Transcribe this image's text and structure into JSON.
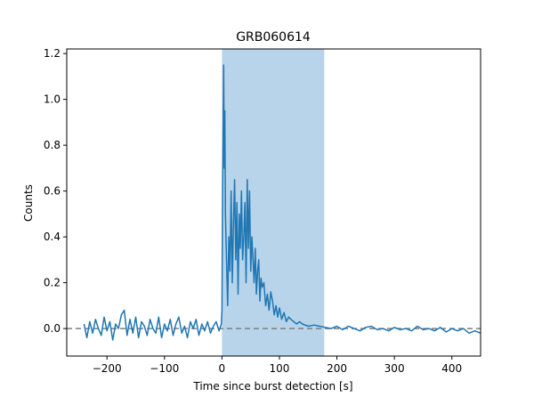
{
  "chart_data": {
    "type": "line",
    "title": "GRB060614",
    "xlabel": "Time since burst detection [s]",
    "ylabel": "Counts",
    "xlim": [
      -270,
      450
    ],
    "ylim": [
      -0.12,
      1.22
    ],
    "x_ticks": [
      -200,
      -100,
      0,
      100,
      200,
      300,
      400
    ],
    "x_tick_labels": [
      "−200",
      "−100",
      "0",
      "100",
      "200",
      "300",
      "400"
    ],
    "y_ticks": [
      0.0,
      0.2,
      0.4,
      0.6,
      0.8,
      1.0,
      1.2
    ],
    "y_tick_labels": [
      "0.0",
      "0.2",
      "0.4",
      "0.6",
      "0.8",
      "1.0",
      "1.2"
    ],
    "grid": false,
    "shaded_interval": {
      "x0": 0,
      "x1": 178,
      "color": "#b8d4ea"
    },
    "reference_line": {
      "y": 0.0,
      "style": "dashed",
      "color": "#7f7f7f"
    },
    "series": [
      {
        "color": "#1f77b4",
        "x": [
          -240,
          -235,
          -230,
          -225,
          -220,
          -215,
          -210,
          -205,
          -200,
          -195,
          -190,
          -185,
          -180,
          -175,
          -170,
          -165,
          -160,
          -155,
          -150,
          -145,
          -140,
          -135,
          -130,
          -125,
          -120,
          -115,
          -110,
          -105,
          -100,
          -95,
          -90,
          -85,
          -80,
          -75,
          -70,
          -65,
          -60,
          -55,
          -50,
          -45,
          -40,
          -35,
          -30,
          -25,
          -20,
          -15,
          -10,
          -5,
          -1,
          0,
          1,
          2,
          3,
          4,
          5,
          6,
          8,
          10,
          12,
          14,
          16,
          18,
          20,
          22,
          24,
          26,
          28,
          30,
          32,
          34,
          36,
          38,
          40,
          42,
          44,
          46,
          48,
          50,
          52,
          54,
          56,
          58,
          60,
          62,
          64,
          66,
          68,
          70,
          73,
          76,
          79,
          82,
          85,
          88,
          91,
          94,
          97,
          100,
          104,
          108,
          112,
          116,
          120,
          125,
          130,
          135,
          140,
          150,
          160,
          170,
          180,
          190,
          200,
          210,
          220,
          230,
          240,
          250,
          260,
          270,
          280,
          290,
          300,
          310,
          320,
          330,
          340,
          350,
          360,
          370,
          380,
          390,
          400,
          410,
          420,
          430,
          440,
          450
        ],
        "y": [
          0.02,
          -0.04,
          0.03,
          -0.02,
          0.04,
          0.0,
          -0.03,
          0.05,
          -0.01,
          0.03,
          -0.05,
          0.02,
          0.0,
          0.06,
          0.08,
          -0.03,
          0.04,
          -0.02,
          0.05,
          -0.04,
          0.03,
          0.01,
          -0.03,
          0.04,
          0.0,
          -0.02,
          0.05,
          -0.04,
          0.02,
          -0.01,
          0.04,
          -0.03,
          0.02,
          0.05,
          -0.02,
          0.01,
          -0.04,
          0.03,
          0.0,
          0.04,
          -0.03,
          0.02,
          -0.01,
          0.03,
          -0.02,
          0.01,
          0.03,
          -0.01,
          0.02,
          0.08,
          0.55,
          0.85,
          1.15,
          0.7,
          0.95,
          0.5,
          0.3,
          0.1,
          0.4,
          0.25,
          0.6,
          0.2,
          0.45,
          0.65,
          0.3,
          0.55,
          0.15,
          0.5,
          0.35,
          0.6,
          0.3,
          0.4,
          0.55,
          0.2,
          0.65,
          0.35,
          0.6,
          0.25,
          0.4,
          0.3,
          0.2,
          0.35,
          0.15,
          0.25,
          0.3,
          0.12,
          0.22,
          0.18,
          0.2,
          0.1,
          0.15,
          0.08,
          0.16,
          0.12,
          0.06,
          0.1,
          0.05,
          0.09,
          0.04,
          0.07,
          0.03,
          0.05,
          0.04,
          0.03,
          0.02,
          0.03,
          0.02,
          0.01,
          0.015,
          0.01,
          0.005,
          0.0,
          0.01,
          -0.005,
          0.01,
          0.0,
          -0.01,
          0.005,
          0.01,
          -0.005,
          0.0,
          -0.01,
          0.005,
          -0.005,
          0.0,
          -0.01,
          0.01,
          -0.005,
          0.0,
          -0.01,
          0.005,
          -0.015,
          0.0,
          -0.01,
          0.0,
          -0.02,
          -0.01,
          -0.02
        ]
      }
    ]
  }
}
